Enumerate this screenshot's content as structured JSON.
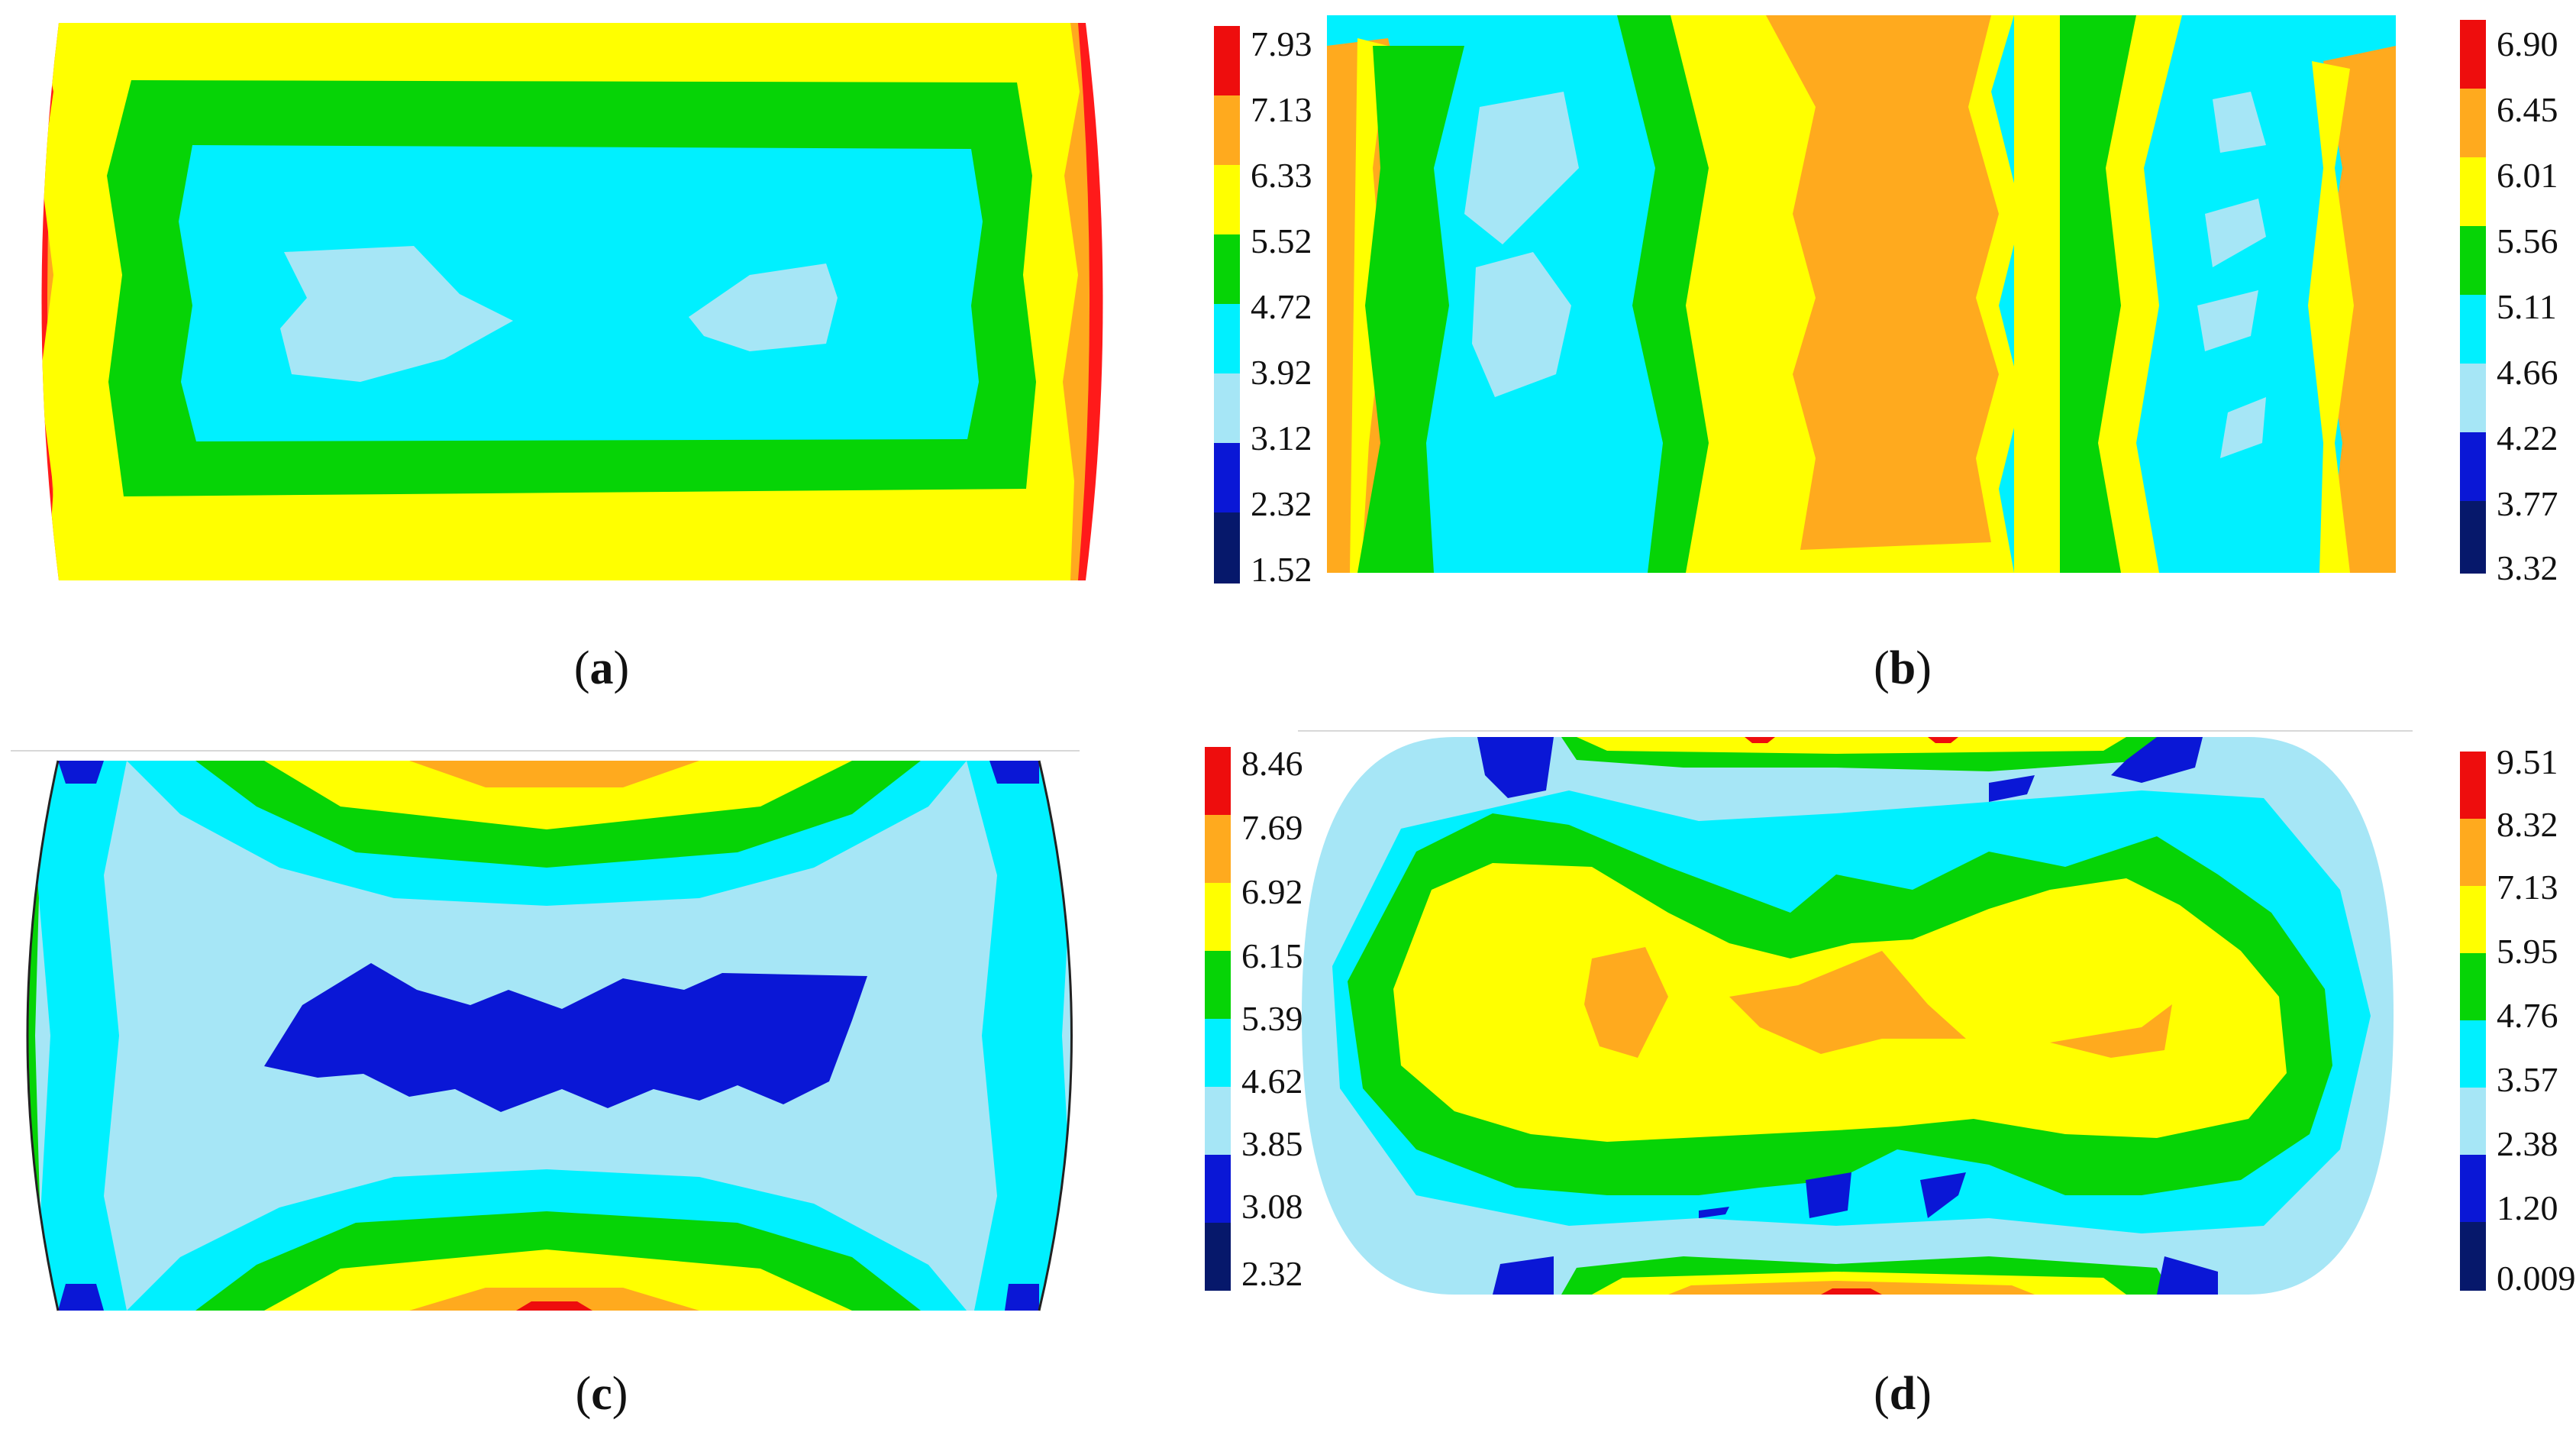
{
  "figure": {
    "panels": [
      {
        "id": "a",
        "caption_open": "(",
        "caption_letter": "a",
        "caption_close": ")",
        "colorbar_ticks": [
          "7.93",
          "7.13",
          "6.33",
          "5.52",
          "4.72",
          "3.92",
          "3.12",
          "2.32",
          "1.52"
        ]
      },
      {
        "id": "b",
        "caption_open": "(",
        "caption_letter": "b",
        "caption_close": ")",
        "colorbar_ticks": [
          "6.90",
          "6.45",
          "6.01",
          "5.56",
          "5.11",
          "4.66",
          "4.22",
          "3.77",
          "3.32"
        ]
      },
      {
        "id": "c",
        "caption_open": "(",
        "caption_letter": "c",
        "caption_close": ")",
        "colorbar_ticks": [
          "8.46",
          "7.69",
          "6.92",
          "6.15",
          "5.39",
          "4.62",
          "3.85",
          "3.08",
          "2.32"
        ]
      },
      {
        "id": "d",
        "caption_open": "(",
        "caption_letter": "d",
        "caption_close": ")",
        "colorbar_ticks": [
          "9.51",
          "8.32",
          "7.13",
          "5.95",
          "4.76",
          "3.57",
          "2.38",
          "1.20",
          "0.009"
        ]
      }
    ],
    "colors": {
      "level_1": "#06186b",
      "level_2": "#0a17d6",
      "level_3": "#a6e6f6",
      "level_4": "#00f0ff",
      "level_5": "#06d406",
      "level_6": "#ffff00",
      "level_7": "#ffaa1e",
      "level_8": "#ee0d0d"
    }
  },
  "chart_data": [
    {
      "type": "heatmap",
      "panel": "a",
      "colorbar": {
        "ticks": [
          7.93,
          7.13,
          6.33,
          5.52,
          4.72,
          3.92,
          3.12,
          2.32,
          1.52
        ],
        "range": [
          1.52,
          7.93
        ],
        "levels": 8
      },
      "pattern": "concentric rectangular bands: red/orange at left & right edges, yellow border, green ring, cyan interior with two light-blue patches"
    },
    {
      "type": "heatmap",
      "panel": "b",
      "colorbar": {
        "ticks": [
          6.9,
          6.45,
          6.01,
          5.56,
          5.11,
          4.66,
          4.22,
          3.77,
          3.32
        ],
        "range": [
          3.32,
          6.9
        ],
        "levels": 8
      },
      "pattern": "vertical bands: orange centre column, yellow, green, cyan columns left and right with light-blue patches"
    },
    {
      "type": "heatmap",
      "panel": "c",
      "colorbar": {
        "ticks": [
          8.46,
          7.69,
          6.92,
          6.15,
          5.39,
          4.62,
          3.85,
          3.08,
          2.32
        ],
        "range": [
          2.32,
          8.46
        ],
        "levels": 8
      },
      "pattern": "light-blue field with dark-blue central band; yellow/orange/red arcs at top and bottom centre; blue corners"
    },
    {
      "type": "heatmap",
      "panel": "d",
      "colorbar": {
        "ticks": [
          9.51,
          8.32,
          7.13,
          5.95,
          4.76,
          3.57,
          2.38,
          1.2,
          0.009
        ],
        "range": [
          0.009,
          9.51
        ],
        "levels": 8
      },
      "pattern": "rounded specimen: yellow core with orange spots, green ring, cyan/light-blue outer field, blue spots near top and bottom edges"
    }
  ]
}
